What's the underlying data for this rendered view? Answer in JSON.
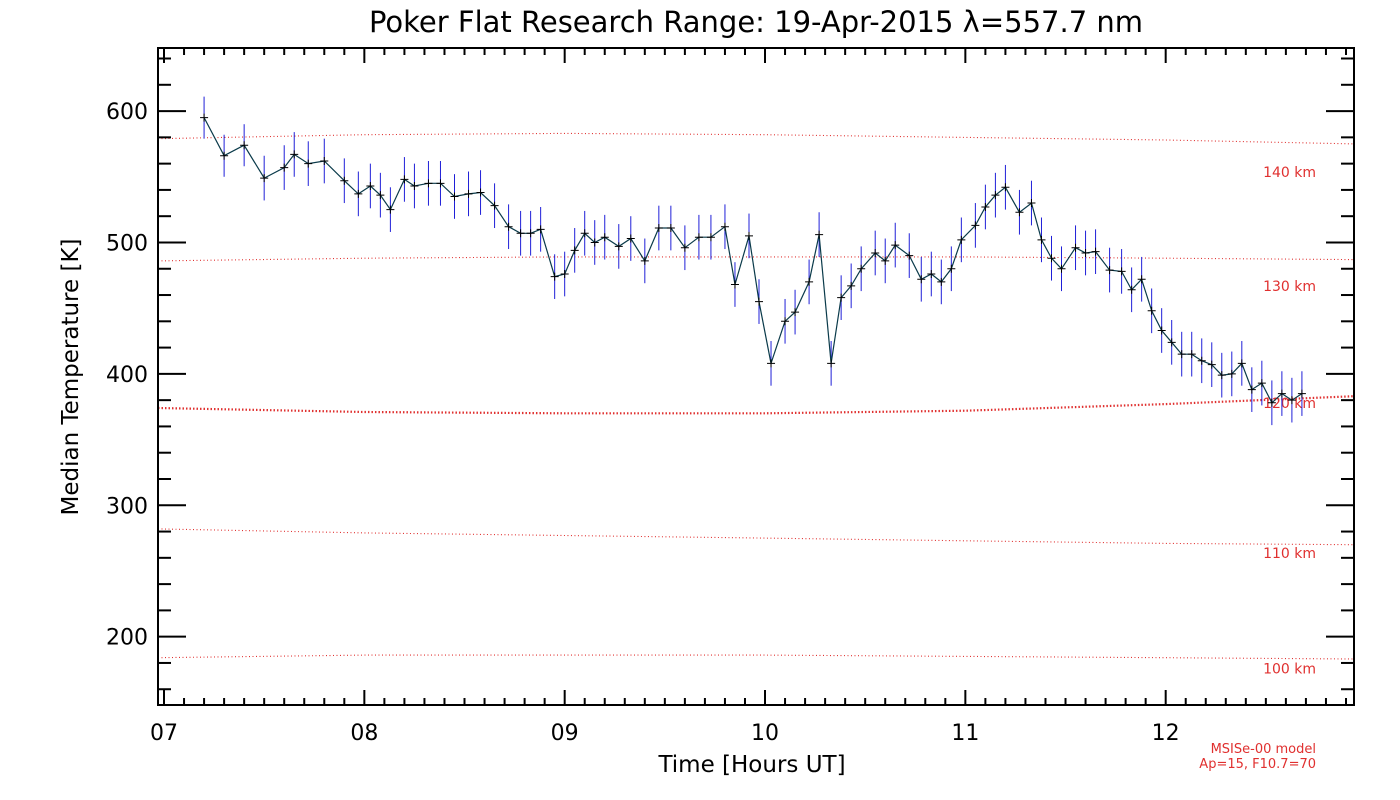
{
  "chart_data": {
    "type": "line",
    "title": "Poker Flat Research Range: 19-Apr-2015 λ=557.7 nm",
    "xlabel": "Time [Hours UT]",
    "ylabel": "Median Temperature [K]",
    "xlim": [
      6.97,
      12.94
    ],
    "ylim": [
      148,
      648
    ],
    "x_ticks": [
      "07",
      "08",
      "09",
      "10",
      "11",
      "12"
    ],
    "y_ticks": [
      "200",
      "300",
      "400",
      "500",
      "600"
    ],
    "grid": false,
    "colors": {
      "line": "#0a3a4a",
      "errorbar": "#1f1fd8",
      "reference": "#e0302f"
    },
    "series": [
      {
        "x": [
          7.2,
          7.3,
          7.4,
          7.5,
          7.6,
          7.65,
          7.72,
          7.8,
          7.9,
          7.97,
          8.03,
          8.08,
          8.13,
          8.2,
          8.25,
          8.32,
          8.38,
          8.45,
          8.52,
          8.58,
          8.65,
          8.72,
          8.78,
          8.83,
          8.88,
          8.95,
          9.0,
          9.05,
          9.1,
          9.15,
          9.2,
          9.27,
          9.33,
          9.4,
          9.47,
          9.53,
          9.6,
          9.67,
          9.73,
          9.8,
          9.85,
          9.92,
          9.97,
          10.03,
          10.1,
          10.15,
          10.22,
          10.27,
          10.33,
          10.38,
          10.43,
          10.48,
          10.55,
          10.6,
          10.65,
          10.72,
          10.78,
          10.83,
          10.88,
          10.93,
          10.98,
          11.05,
          11.1,
          11.15,
          11.2,
          11.27,
          11.33,
          11.38,
          11.43,
          11.48,
          11.55,
          11.6,
          11.65,
          11.72,
          11.78,
          11.83,
          11.88,
          11.93,
          11.98,
          12.03,
          12.08,
          12.13,
          12.18,
          12.23,
          12.28,
          12.33,
          12.38,
          12.43,
          12.48,
          12.53,
          12.58,
          12.63,
          12.68
        ],
        "y": [
          595,
          566,
          574,
          549,
          557,
          567,
          560,
          562,
          547,
          537,
          543,
          536,
          525,
          548,
          543,
          545,
          545,
          535,
          537,
          538,
          528,
          512,
          507,
          507,
          510,
          474,
          476,
          494,
          507,
          500,
          504,
          497,
          503,
          486,
          511,
          511,
          496,
          504,
          504,
          512,
          468,
          505,
          455,
          408,
          440,
          447,
          470,
          506,
          408,
          458,
          467,
          480,
          492,
          486,
          498,
          490,
          472,
          476,
          470,
          480,
          502,
          513,
          527,
          536,
          542,
          523,
          530,
          502,
          488,
          480,
          496,
          492,
          493,
          479,
          478,
          464,
          472,
          448,
          433,
          424,
          415,
          415,
          410,
          407,
          399,
          400,
          408,
          388,
          393,
          378,
          385,
          380,
          385
        ],
        "errors": [
          16,
          16,
          16,
          17,
          17,
          17,
          17,
          17,
          17,
          17,
          17,
          17,
          17,
          17,
          17,
          17,
          17,
          17,
          17,
          17,
          17,
          17,
          17,
          17,
          17,
          17,
          17,
          17,
          17,
          17,
          17,
          17,
          17,
          17,
          17,
          17,
          17,
          17,
          17,
          17,
          17,
          17,
          17,
          17,
          17,
          17,
          17,
          17,
          17,
          17,
          17,
          17,
          17,
          17,
          17,
          17,
          17,
          17,
          17,
          17,
          17,
          17,
          17,
          17,
          17,
          17,
          17,
          17,
          17,
          17,
          17,
          17,
          17,
          17,
          17,
          17,
          17,
          17,
          17,
          17,
          17,
          17,
          17,
          17,
          17,
          17,
          17,
          17,
          17,
          17,
          17,
          17,
          17
        ]
      }
    ],
    "reference_lines": [
      {
        "label": "100 km",
        "x": [
          6.97,
          8.0,
          9.0,
          10.0,
          11.0,
          12.0,
          12.94
        ],
        "y": [
          184,
          186,
          186,
          186,
          185,
          184,
          183
        ]
      },
      {
        "label": "110 km",
        "x": [
          6.97,
          8.0,
          9.0,
          10.0,
          11.0,
          12.0,
          12.94
        ],
        "y": [
          282,
          279,
          277,
          275,
          273,
          271,
          270
        ]
      },
      {
        "label": "120 km",
        "x": [
          6.97,
          8.0,
          9.0,
          10.0,
          11.0,
          12.0,
          12.94
        ],
        "y": [
          374,
          371,
          370,
          370,
          372,
          377,
          383
        ],
        "emphasis": true
      },
      {
        "label": "130 km",
        "x": [
          6.97,
          8.0,
          9.0,
          10.0,
          11.0,
          12.0,
          12.94
        ],
        "y": [
          486,
          488,
          489,
          489,
          489,
          488,
          487
        ]
      },
      {
        "label": "140 km",
        "x": [
          6.97,
          8.0,
          9.0,
          10.0,
          11.0,
          12.0,
          12.94
        ],
        "y": [
          579,
          582,
          583,
          582,
          580,
          578,
          575
        ]
      }
    ],
    "ref_label_y": [
      172,
      260,
      374,
      463,
      550
    ],
    "notes": [
      "MSISe-00 model",
      "Ap=15, F10.7=70"
    ]
  }
}
